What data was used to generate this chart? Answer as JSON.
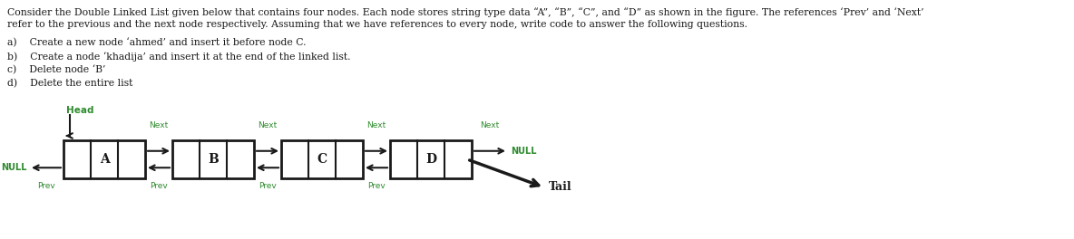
{
  "title_line1": "Consider the Double Linked List given below that contains four nodes. Each node stores string type data “A”, “B”, “C”, and “D” as shown in the figure. The references ‘Prev’ and ‘Next’",
  "title_line2": "refer to the previous and the next node respectively. Assuming that we have references to every node, write code to answer the following questions.",
  "q_a": "a)    Create a new node ‘ahmed’ and insert it before node C.",
  "q_b": "b)    Create a node ‘khadija’ and insert it at the end of the linked list.",
  "q_c": "c)    Delete node ‘B’",
  "q_d": "d)    Delete the entire list",
  "nodes": [
    "A",
    "B",
    "C",
    "D"
  ],
  "green": "#2E8B2E",
  "black": "#1a1a1a",
  "white": "#ffffff",
  "bg": "#ffffff",
  "fig_width": 11.84,
  "fig_height": 2.64,
  "dpi": 100
}
